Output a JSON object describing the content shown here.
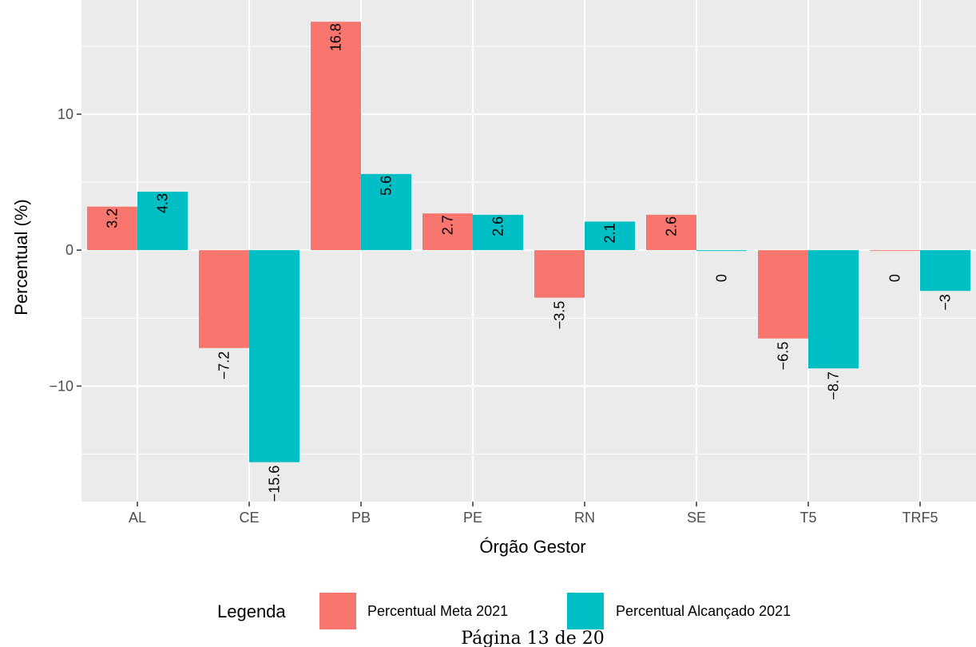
{
  "chart_data": {
    "type": "bar",
    "categories": [
      "AL",
      "CE",
      "PB",
      "PE",
      "RN",
      "SE",
      "T5",
      "TRF5"
    ],
    "series": [
      {
        "name": "Percentual Meta 2021",
        "color": "#F8766D",
        "values": [
          3.2,
          -7.2,
          16.8,
          2.7,
          -3.5,
          2.6,
          -6.5,
          0
        ],
        "labels": [
          "3.2",
          "−7.2",
          "16.8",
          "2.7",
          "−3.5",
          "2.6",
          "−6.5",
          "0"
        ]
      },
      {
        "name": "Percentual Alcançado 2021",
        "color": "#00BFC4",
        "values": [
          4.3,
          -15.6,
          5.6,
          2.6,
          2.1,
          0,
          -8.7,
          -3
        ],
        "labels": [
          "4.3",
          "−15.6",
          "5.6",
          "2.6",
          "2.1",
          "0",
          "−8.7",
          "−3"
        ]
      }
    ],
    "xlabel": "Órgão Gestor",
    "ylabel": "Percentual (%)",
    "ylim": [
      -18.5,
      18.4
    ],
    "yticks": [
      -10,
      0,
      10
    ],
    "ytick_labels": [
      "−10",
      "0",
      "10"
    ],
    "grid": true,
    "legend_title": "Legenda",
    "legend_position": "bottom"
  },
  "footer": {
    "page_text": "Página 13 de 20"
  },
  "colors": {
    "panel_background": "#EBEBEB",
    "grid_line": "#FFFFFF"
  }
}
